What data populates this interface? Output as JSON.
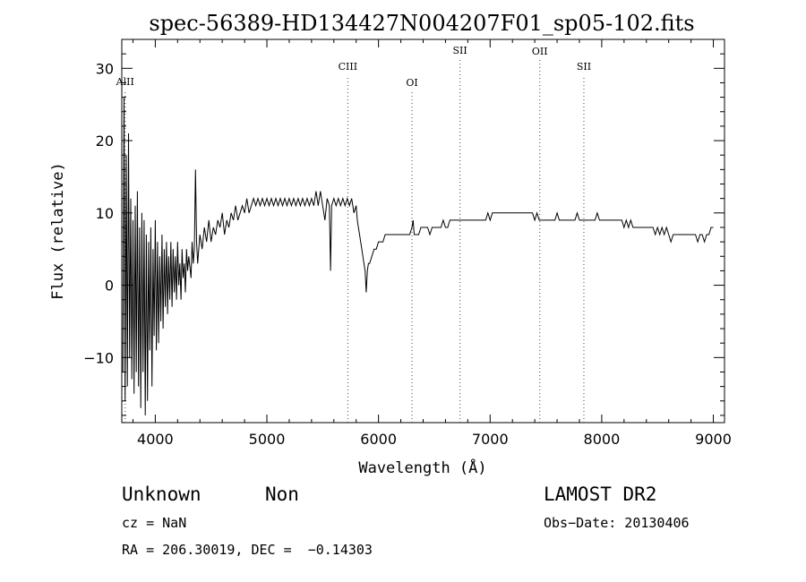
{
  "chart_data": {
    "type": "line",
    "title": "spec-56389-HD134427N004207F01_sp05-102.fits",
    "xlabel": "Wavelength (Å)",
    "ylabel": "Flux (relative)",
    "xlim": [
      3700,
      9100
    ],
    "ylim": [
      -19,
      34
    ],
    "xticks": [
      4000,
      5000,
      6000,
      7000,
      8000,
      9000
    ],
    "yticks": [
      -10,
      0,
      10,
      20,
      30
    ],
    "ytick_labels": [
      "−10",
      "0",
      "10",
      "20",
      "30"
    ],
    "grid": false,
    "spectral_lines": [
      {
        "name": "AlII",
        "x": 3730
      },
      {
        "name": "CIII",
        "x": 5725
      },
      {
        "name": "OI",
        "x": 6300
      },
      {
        "name": "SII",
        "x": 6730
      },
      {
        "name": "OII",
        "x": 7445
      },
      {
        "name": "SII",
        "x": 7840
      }
    ],
    "series": [
      {
        "points": [
          [
            3710,
            -12
          ],
          [
            3720,
            26
          ],
          [
            3730,
            -16
          ],
          [
            3740,
            18
          ],
          [
            3750,
            -14
          ],
          [
            3760,
            21
          ],
          [
            3770,
            -10
          ],
          [
            3780,
            12
          ],
          [
            3790,
            -13
          ],
          [
            3800,
            9
          ],
          [
            3810,
            -15
          ],
          [
            3820,
            11
          ],
          [
            3830,
            -12
          ],
          [
            3840,
            13
          ],
          [
            3850,
            -14
          ],
          [
            3860,
            8
          ],
          [
            3870,
            -17
          ],
          [
            3880,
            10
          ],
          [
            3890,
            -12
          ],
          [
            3900,
            9
          ],
          [
            3910,
            -18
          ],
          [
            3920,
            7
          ],
          [
            3930,
            -16
          ],
          [
            3940,
            6
          ],
          [
            3950,
            -9
          ],
          [
            3960,
            8
          ],
          [
            3970,
            -14
          ],
          [
            3980,
            5
          ],
          [
            3990,
            -7
          ],
          [
            4000,
            9
          ],
          [
            4010,
            -9
          ],
          [
            4020,
            6
          ],
          [
            4030,
            -8
          ],
          [
            4040,
            4
          ],
          [
            4050,
            -5
          ],
          [
            4060,
            7
          ],
          [
            4070,
            -6
          ],
          [
            4080,
            5
          ],
          [
            4090,
            -3
          ],
          [
            4100,
            6
          ],
          [
            4110,
            -4
          ],
          [
            4120,
            4
          ],
          [
            4130,
            -2
          ],
          [
            4140,
            6
          ],
          [
            4150,
            -3
          ],
          [
            4160,
            5
          ],
          [
            4170,
            -1
          ],
          [
            4180,
            4
          ],
          [
            4190,
            -2
          ],
          [
            4200,
            6
          ],
          [
            4210,
            0
          ],
          [
            4220,
            3
          ],
          [
            4230,
            -2
          ],
          [
            4240,
            5
          ],
          [
            4250,
            1
          ],
          [
            4260,
            3
          ],
          [
            4270,
            -1
          ],
          [
            4280,
            5
          ],
          [
            4290,
            2
          ],
          [
            4300,
            4
          ],
          [
            4320,
            1
          ],
          [
            4330,
            6
          ],
          [
            4340,
            3
          ],
          [
            4350,
            5
          ],
          [
            4360,
            16
          ],
          [
            4370,
            6
          ],
          [
            4380,
            3
          ],
          [
            4400,
            7
          ],
          [
            4420,
            5
          ],
          [
            4440,
            8
          ],
          [
            4460,
            6
          ],
          [
            4480,
            9
          ],
          [
            4500,
            6
          ],
          [
            4520,
            8
          ],
          [
            4540,
            7
          ],
          [
            4560,
            9
          ],
          [
            4580,
            8
          ],
          [
            4600,
            10
          ],
          [
            4620,
            7
          ],
          [
            4640,
            9
          ],
          [
            4660,
            8
          ],
          [
            4680,
            10
          ],
          [
            4700,
            9
          ],
          [
            4720,
            11
          ],
          [
            4740,
            9
          ],
          [
            4760,
            10
          ],
          [
            4780,
            11
          ],
          [
            4800,
            10
          ],
          [
            4820,
            12
          ],
          [
            4840,
            10
          ],
          [
            4860,
            11
          ],
          [
            4880,
            12
          ],
          [
            4900,
            11
          ],
          [
            4920,
            12
          ],
          [
            4940,
            11
          ],
          [
            4960,
            12
          ],
          [
            4980,
            11
          ],
          [
            5000,
            12
          ],
          [
            5020,
            11
          ],
          [
            5040,
            12
          ],
          [
            5060,
            11
          ],
          [
            5080,
            12
          ],
          [
            5100,
            11
          ],
          [
            5120,
            12
          ],
          [
            5140,
            11
          ],
          [
            5160,
            12
          ],
          [
            5180,
            11
          ],
          [
            5200,
            12
          ],
          [
            5220,
            11
          ],
          [
            5240,
            12
          ],
          [
            5260,
            11
          ],
          [
            5280,
            12
          ],
          [
            5300,
            11
          ],
          [
            5320,
            12
          ],
          [
            5340,
            11
          ],
          [
            5360,
            12
          ],
          [
            5380,
            11
          ],
          [
            5400,
            12
          ],
          [
            5420,
            11
          ],
          [
            5440,
            13
          ],
          [
            5460,
            11
          ],
          [
            5480,
            13
          ],
          [
            5500,
            11
          ],
          [
            5520,
            9
          ],
          [
            5540,
            12
          ],
          [
            5560,
            11
          ],
          [
            5570,
            2
          ],
          [
            5580,
            11
          ],
          [
            5600,
            12
          ],
          [
            5620,
            11
          ],
          [
            5640,
            12
          ],
          [
            5660,
            11
          ],
          [
            5680,
            12
          ],
          [
            5700,
            11
          ],
          [
            5720,
            12
          ],
          [
            5740,
            11
          ],
          [
            5760,
            12
          ],
          [
            5780,
            10
          ],
          [
            5800,
            11
          ],
          [
            5810,
            9
          ],
          [
            5820,
            8
          ],
          [
            5830,
            7
          ],
          [
            5840,
            6
          ],
          [
            5850,
            5
          ],
          [
            5860,
            4
          ],
          [
            5870,
            3
          ],
          [
            5880,
            2
          ],
          [
            5890,
            -1
          ],
          [
            5900,
            2
          ],
          [
            5910,
            3
          ],
          [
            5920,
            3
          ],
          [
            5940,
            4
          ],
          [
            5960,
            5
          ],
          [
            5980,
            5
          ],
          [
            6000,
            6
          ],
          [
            6020,
            6
          ],
          [
            6040,
            6
          ],
          [
            6060,
            7
          ],
          [
            6080,
            7
          ],
          [
            6100,
            7
          ],
          [
            6120,
            7
          ],
          [
            6140,
            7
          ],
          [
            6160,
            7
          ],
          [
            6180,
            7
          ],
          [
            6200,
            7
          ],
          [
            6220,
            7
          ],
          [
            6240,
            7
          ],
          [
            6260,
            7
          ],
          [
            6280,
            7
          ],
          [
            6300,
            8
          ],
          [
            6310,
            9
          ],
          [
            6320,
            7
          ],
          [
            6340,
            7
          ],
          [
            6360,
            7
          ],
          [
            6380,
            8
          ],
          [
            6400,
            8
          ],
          [
            6420,
            8
          ],
          [
            6440,
            8
          ],
          [
            6460,
            7
          ],
          [
            6480,
            8
          ],
          [
            6500,
            8
          ],
          [
            6520,
            8
          ],
          [
            6540,
            8
          ],
          [
            6560,
            8
          ],
          [
            6580,
            9
          ],
          [
            6600,
            8
          ],
          [
            6620,
            8
          ],
          [
            6640,
            9
          ],
          [
            6660,
            9
          ],
          [
            6680,
            9
          ],
          [
            6700,
            9
          ],
          [
            6720,
            9
          ],
          [
            6740,
            9
          ],
          [
            6760,
            9
          ],
          [
            6780,
            9
          ],
          [
            6800,
            9
          ],
          [
            6820,
            9
          ],
          [
            6840,
            9
          ],
          [
            6860,
            9
          ],
          [
            6880,
            9
          ],
          [
            6900,
            9
          ],
          [
            6920,
            9
          ],
          [
            6940,
            9
          ],
          [
            6960,
            9
          ],
          [
            6980,
            10
          ],
          [
            7000,
            9
          ],
          [
            7020,
            10
          ],
          [
            7040,
            10
          ],
          [
            7060,
            10
          ],
          [
            7080,
            10
          ],
          [
            7100,
            10
          ],
          [
            7120,
            10
          ],
          [
            7140,
            10
          ],
          [
            7160,
            10
          ],
          [
            7180,
            10
          ],
          [
            7200,
            10
          ],
          [
            7220,
            10
          ],
          [
            7240,
            10
          ],
          [
            7260,
            10
          ],
          [
            7280,
            10
          ],
          [
            7300,
            10
          ],
          [
            7320,
            10
          ],
          [
            7340,
            10
          ],
          [
            7360,
            10
          ],
          [
            7380,
            10
          ],
          [
            7400,
            9
          ],
          [
            7420,
            10
          ],
          [
            7440,
            9
          ],
          [
            7460,
            9
          ],
          [
            7480,
            9
          ],
          [
            7500,
            9
          ],
          [
            7520,
            9
          ],
          [
            7540,
            9
          ],
          [
            7560,
            9
          ],
          [
            7580,
            9
          ],
          [
            7600,
            10
          ],
          [
            7620,
            9
          ],
          [
            7640,
            9
          ],
          [
            7660,
            9
          ],
          [
            7680,
            9
          ],
          [
            7700,
            9
          ],
          [
            7720,
            9
          ],
          [
            7740,
            9
          ],
          [
            7760,
            9
          ],
          [
            7780,
            10
          ],
          [
            7800,
            9
          ],
          [
            7820,
            9
          ],
          [
            7840,
            9
          ],
          [
            7860,
            9
          ],
          [
            7880,
            9
          ],
          [
            7900,
            9
          ],
          [
            7920,
            9
          ],
          [
            7940,
            9
          ],
          [
            7960,
            10
          ],
          [
            7980,
            9
          ],
          [
            8000,
            9
          ],
          [
            8020,
            9
          ],
          [
            8040,
            9
          ],
          [
            8060,
            9
          ],
          [
            8080,
            9
          ],
          [
            8100,
            9
          ],
          [
            8120,
            9
          ],
          [
            8140,
            9
          ],
          [
            8160,
            9
          ],
          [
            8180,
            9
          ],
          [
            8200,
            8
          ],
          [
            8220,
            9
          ],
          [
            8240,
            8
          ],
          [
            8260,
            9
          ],
          [
            8280,
            8
          ],
          [
            8300,
            8
          ],
          [
            8320,
            8
          ],
          [
            8340,
            8
          ],
          [
            8360,
            8
          ],
          [
            8380,
            8
          ],
          [
            8400,
            8
          ],
          [
            8420,
            8
          ],
          [
            8440,
            8
          ],
          [
            8460,
            8
          ],
          [
            8480,
            7
          ],
          [
            8500,
            8
          ],
          [
            8520,
            7
          ],
          [
            8540,
            8
          ],
          [
            8560,
            7
          ],
          [
            8580,
            8
          ],
          [
            8600,
            7
          ],
          [
            8620,
            6
          ],
          [
            8640,
            7
          ],
          [
            8660,
            7
          ],
          [
            8680,
            7
          ],
          [
            8700,
            7
          ],
          [
            8720,
            7
          ],
          [
            8740,
            7
          ],
          [
            8760,
            7
          ],
          [
            8780,
            7
          ],
          [
            8800,
            7
          ],
          [
            8820,
            7
          ],
          [
            8840,
            7
          ],
          [
            8860,
            6
          ],
          [
            8880,
            7
          ],
          [
            8900,
            7
          ],
          [
            8920,
            6
          ],
          [
            8940,
            7
          ],
          [
            8960,
            7
          ],
          [
            8980,
            8
          ],
          [
            9000,
            8
          ]
        ]
      }
    ]
  },
  "info": {
    "object_class": "Unknown",
    "subclass": "Non",
    "cz": "cz = NaN",
    "radec": "RA = 206.30019, DEC =  −0.14303",
    "survey": "LAMOST DR2",
    "obs_date": "Obs−Date: 20130406"
  }
}
